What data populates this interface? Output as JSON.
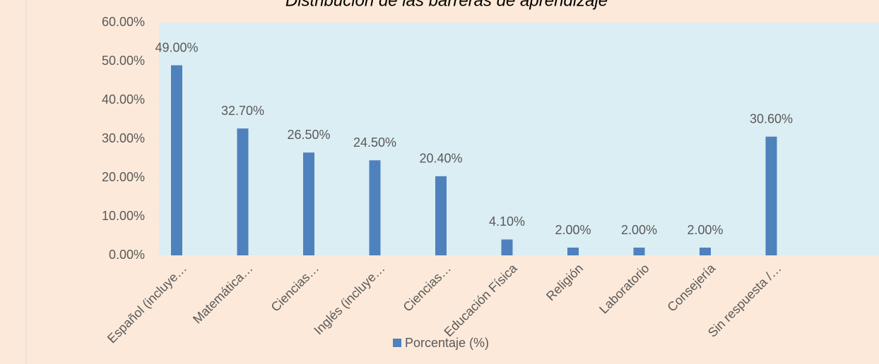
{
  "chart_data": {
    "type": "bar",
    "title": "Distribución de las barreras de aprendizaje",
    "categories": [
      "Español (incluye…",
      "Matemática…",
      "Ciencias…",
      "Inglés (incluye…",
      "Ciencias…",
      "Educación Física",
      "Religión",
      "Laboratorio",
      "Consejería",
      "Sin respuesta /…"
    ],
    "series": [
      {
        "name": "Porcentaje (%)",
        "color": "#4f81bd",
        "values": [
          49,
          32.7,
          26.5,
          24.5,
          20.4,
          4.1,
          2,
          2,
          2,
          30.6
        ],
        "value_labels": [
          "49.00%",
          "32.70%",
          "26.50%",
          "24.50%",
          "20.40%",
          "4.10%",
          "2.00%",
          "2.00%",
          "2.00%",
          "30.60%"
        ]
      }
    ],
    "ylim": [
      0,
      60
    ],
    "yticks": [
      {
        "value": 0,
        "label": "0.00%"
      },
      {
        "value": 10,
        "label": "10.00%"
      },
      {
        "value": 20,
        "label": "20.00%"
      },
      {
        "value": 30,
        "label": "30.00%"
      },
      {
        "value": 40,
        "label": "40.00%"
      },
      {
        "value": 50,
        "label": "50.00%"
      },
      {
        "value": 60,
        "label": "60.00%"
      }
    ],
    "legend": "bottom"
  }
}
